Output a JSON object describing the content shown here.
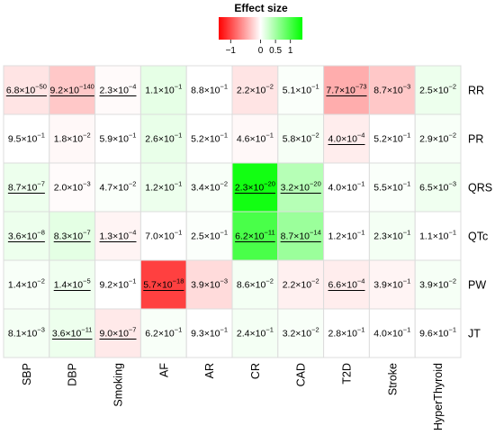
{
  "chart_data": {
    "type": "heatmap",
    "legend": {
      "title": "Effect size",
      "ticks": [
        "−1",
        "0",
        "0.5",
        "1"
      ],
      "tick_values": [
        -1,
        0,
        0.5,
        1
      ],
      "range": [
        -1.4,
        1.4
      ]
    },
    "colors": {
      "negative": "#ff0000",
      "zero": "#ffffff",
      "positive": "#00ff00",
      "grid": "#dcdcdc"
    },
    "columns": [
      "SBP",
      "DBP",
      "Smoking",
      "AF",
      "AR",
      "CR",
      "CAD",
      "T2D",
      "Stroke",
      "HyperThyroid"
    ],
    "rows": [
      "RR",
      "PR",
      "QRS",
      "QTc",
      "PW",
      "JT"
    ],
    "cells": [
      [
        {
          "m": "6.8",
          "e": "-50",
          "u": true,
          "v": -0.15
        },
        {
          "m": "9.2",
          "e": "-140",
          "u": true,
          "v": -0.3
        },
        {
          "m": "2.3",
          "e": "-4",
          "u": true,
          "v": -0.03
        },
        {
          "m": "1.1",
          "e": "-1",
          "u": false,
          "v": 0.14
        },
        {
          "m": "8.8",
          "e": "-1",
          "u": false,
          "v": 0.0
        },
        {
          "m": "2.2",
          "e": "-2",
          "u": false,
          "v": -0.15
        },
        {
          "m": "5.1",
          "e": "-1",
          "u": false,
          "v": 0.03
        },
        {
          "m": "7.7",
          "e": "-73",
          "u": true,
          "v": -0.45
        },
        {
          "m": "8.7",
          "e": "-3",
          "u": false,
          "v": -0.3
        },
        {
          "m": "2.5",
          "e": "-2",
          "u": false,
          "v": 0.1
        }
      ],
      [
        {
          "m": "9.5",
          "e": "-1",
          "u": false,
          "v": 0.0
        },
        {
          "m": "1.8",
          "e": "-2",
          "u": false,
          "v": -0.04
        },
        {
          "m": "5.9",
          "e": "-1",
          "u": false,
          "v": 0.0
        },
        {
          "m": "2.6",
          "e": "-1",
          "u": false,
          "v": 0.12
        },
        {
          "m": "5.2",
          "e": "-1",
          "u": false,
          "v": 0.0
        },
        {
          "m": "4.6",
          "e": "-1",
          "u": false,
          "v": -0.04
        },
        {
          "m": "5.8",
          "e": "-2",
          "u": false,
          "v": 0.05
        },
        {
          "m": "4.0",
          "e": "-4",
          "u": true,
          "v": -0.1
        },
        {
          "m": "5.2",
          "e": "-1",
          "u": false,
          "v": 0.0
        },
        {
          "m": "2.9",
          "e": "-2",
          "u": false,
          "v": 0.04
        }
      ],
      [
        {
          "m": "8.7",
          "e": "-7",
          "u": true,
          "v": 0.1
        },
        {
          "m": "2.0",
          "e": "-3",
          "u": false,
          "v": -0.02
        },
        {
          "m": "4.7",
          "e": "-2",
          "u": false,
          "v": 0.03
        },
        {
          "m": "1.2",
          "e": "-1",
          "u": false,
          "v": 0.1
        },
        {
          "m": "3.4",
          "e": "-2",
          "u": false,
          "v": 0.04
        },
        {
          "m": "2.3",
          "e": "-20",
          "u": true,
          "v": 1.3
        },
        {
          "m": "3.2",
          "e": "-20",
          "u": true,
          "v": 0.4
        },
        {
          "m": "4.0",
          "e": "-1",
          "u": false,
          "v": 0.0
        },
        {
          "m": "5.5",
          "e": "-1",
          "u": false,
          "v": 0.03
        },
        {
          "m": "6.5",
          "e": "-3",
          "u": false,
          "v": 0.08
        }
      ],
      [
        {
          "m": "3.6",
          "e": "-8",
          "u": true,
          "v": 0.1
        },
        {
          "m": "8.3",
          "e": "-7",
          "u": true,
          "v": 0.15
        },
        {
          "m": "1.3",
          "e": "-4",
          "u": true,
          "v": -0.06
        },
        {
          "m": "7.0",
          "e": "-1",
          "u": false,
          "v": 0.0
        },
        {
          "m": "2.5",
          "e": "-1",
          "u": false,
          "v": 0.02
        },
        {
          "m": "6.2",
          "e": "-11",
          "u": true,
          "v": 1.0
        },
        {
          "m": "8.7",
          "e": "-14",
          "u": true,
          "v": 0.55
        },
        {
          "m": "1.2",
          "e": "-1",
          "u": false,
          "v": 0.0
        },
        {
          "m": "2.3",
          "e": "-1",
          "u": false,
          "v": 0.06
        },
        {
          "m": "1.1",
          "e": "-1",
          "u": false,
          "v": 0.0
        }
      ],
      [
        {
          "m": "1.4",
          "e": "-2",
          "u": false,
          "v": 0.04
        },
        {
          "m": "1.4",
          "e": "-5",
          "u": true,
          "v": 0.08
        },
        {
          "m": "9.2",
          "e": "-1",
          "u": false,
          "v": 0.0
        },
        {
          "m": "5.7",
          "e": "-18",
          "u": true,
          "v": -1.05
        },
        {
          "m": "3.9",
          "e": "-3",
          "u": false,
          "v": -0.2
        },
        {
          "m": "8.6",
          "e": "-2",
          "u": false,
          "v": 0.06
        },
        {
          "m": "2.2",
          "e": "-2",
          "u": false,
          "v": -0.08
        },
        {
          "m": "6.6",
          "e": "-4",
          "u": true,
          "v": -0.1
        },
        {
          "m": "3.9",
          "e": "-1",
          "u": false,
          "v": -0.06
        },
        {
          "m": "3.9",
          "e": "-2",
          "u": false,
          "v": 0.05
        }
      ],
      [
        {
          "m": "8.1",
          "e": "-3",
          "u": false,
          "v": 0.06
        },
        {
          "m": "3.6",
          "e": "-11",
          "u": true,
          "v": 0.1
        },
        {
          "m": "9.0",
          "e": "-7",
          "u": true,
          "v": -0.12
        },
        {
          "m": "6.2",
          "e": "-1",
          "u": false,
          "v": 0.04
        },
        {
          "m": "9.3",
          "e": "-1",
          "u": false,
          "v": 0.0
        },
        {
          "m": "2.4",
          "e": "-1",
          "u": false,
          "v": 0.06
        },
        {
          "m": "3.2",
          "e": "-2",
          "u": false,
          "v": 0.04
        },
        {
          "m": "2.8",
          "e": "-1",
          "u": false,
          "v": 0.0
        },
        {
          "m": "4.0",
          "e": "-1",
          "u": false,
          "v": 0.0
        },
        {
          "m": "9.6",
          "e": "-1",
          "u": false,
          "v": 0.0
        }
      ]
    ]
  }
}
